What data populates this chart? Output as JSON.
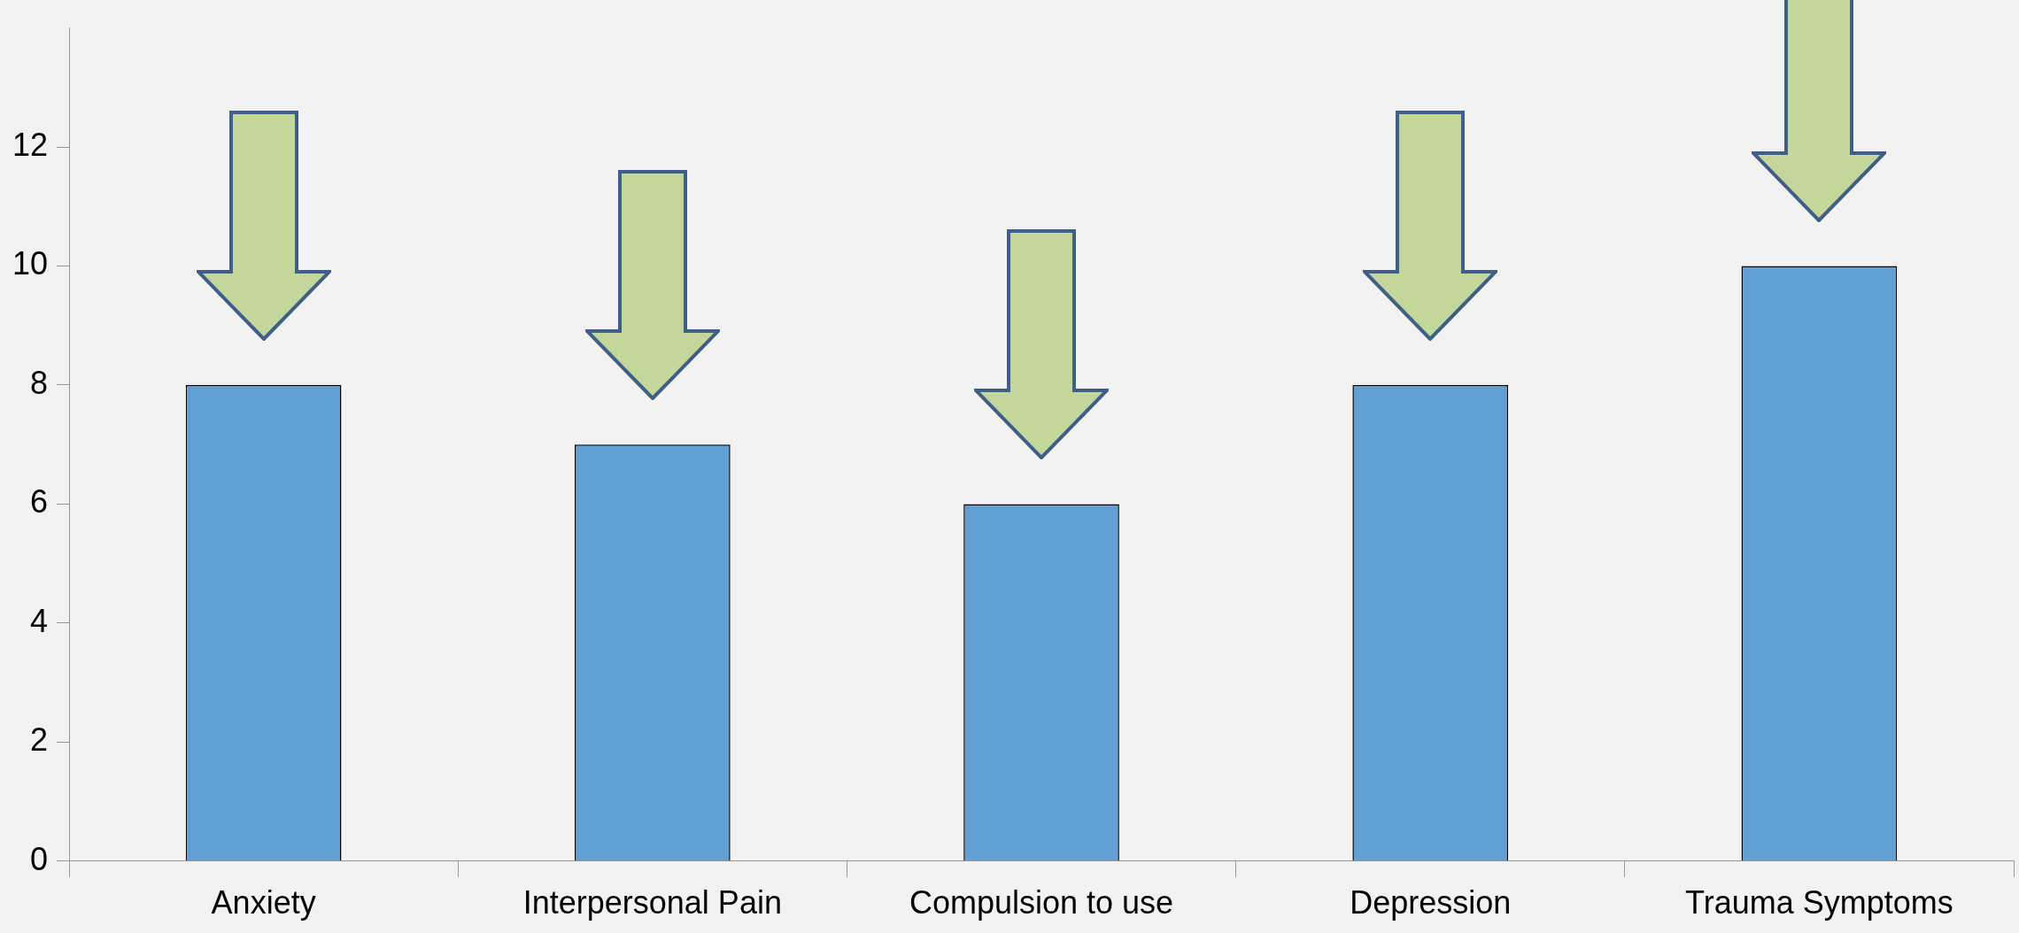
{
  "chart_data": {
    "type": "bar",
    "categories": [
      "Anxiety",
      "Interpersonal Pain",
      "Compulsion to use",
      "Depression",
      "Trauma Symptoms"
    ],
    "values": [
      8,
      7,
      6,
      8,
      10
    ],
    "color": "#629fd2",
    "ylim": [
      0,
      14
    ],
    "yticks": [
      0,
      2,
      4,
      6,
      8,
      10,
      12
    ],
    "grid": false,
    "legend": false
  }
}
